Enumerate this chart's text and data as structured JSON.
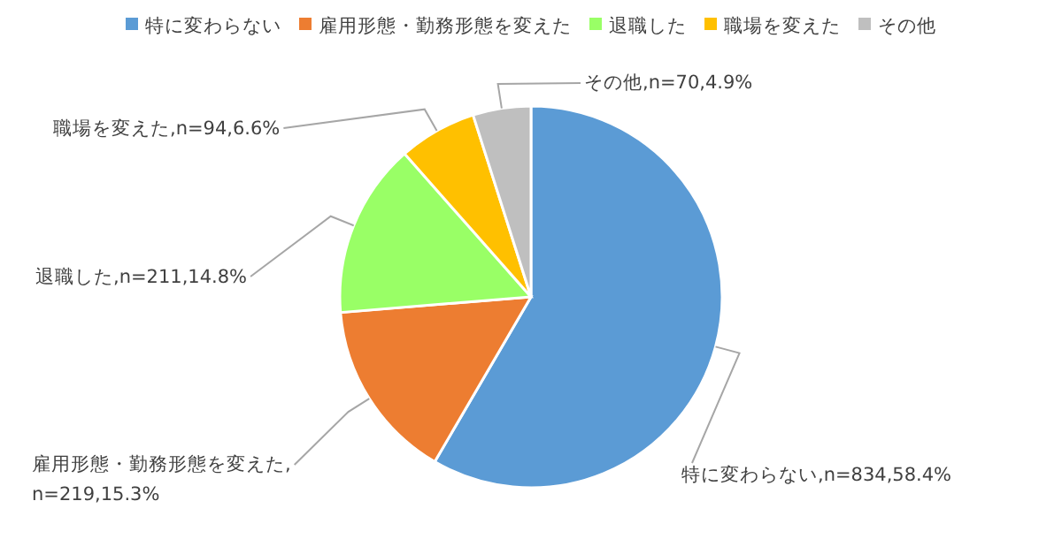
{
  "chart_data": {
    "type": "pie",
    "legend": "top",
    "categories": [
      "特に変わらない",
      "雇用形態・勤務形態を変えた",
      "退職した",
      "職場を変えた",
      "その他"
    ],
    "values": [
      58.4,
      15.3,
      14.8,
      6.6,
      4.9
    ],
    "value_labels": [
      ",n=834,58.4%",
      ",n=219,15.3%",
      ",n=211,14.8%",
      ",n=94,6.6%",
      ",n=70,4.9%"
    ],
    "colors": [
      "#5b9bd5",
      "#ed7d31",
      "#99ff66",
      "#ffc000",
      "#bfbfbf"
    ]
  }
}
